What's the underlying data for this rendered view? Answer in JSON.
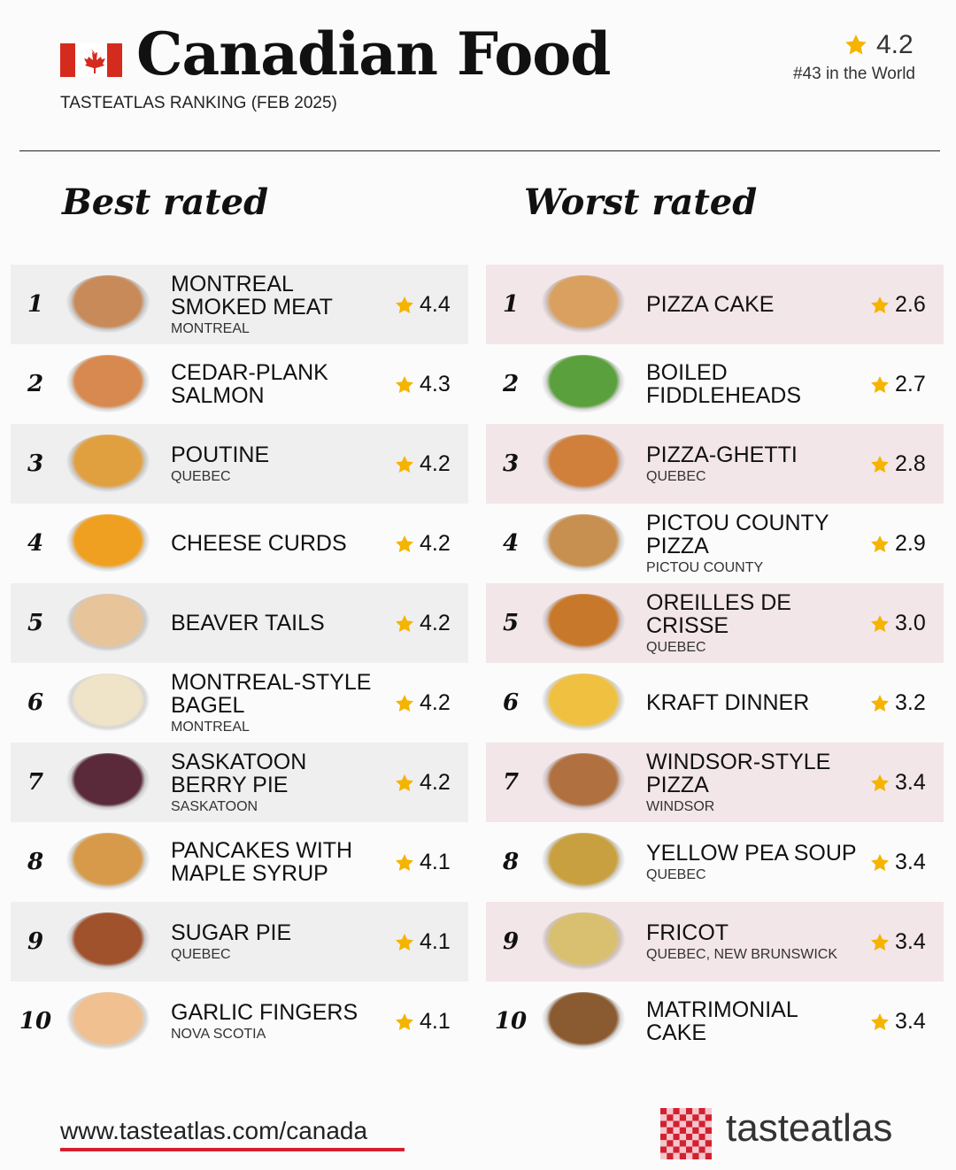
{
  "header": {
    "title": "Canadian Food",
    "subtitle": "TASTEATLAS RANKING (FEB 2025)",
    "rating": "4.2",
    "world_rank": "#43 in the World"
  },
  "best": {
    "heading": "Best rated",
    "items": [
      {
        "rank": 1,
        "name": "MONTREAL SMOKED MEAT",
        "region": "MONTREAL",
        "rating": "4.4"
      },
      {
        "rank": 2,
        "name": "CEDAR-PLANK SALMON",
        "region": null,
        "rating": "4.3"
      },
      {
        "rank": 3,
        "name": "POUTINE",
        "region": "QUEBEC",
        "rating": "4.2"
      },
      {
        "rank": 4,
        "name": "CHEESE CURDS",
        "region": null,
        "rating": "4.2"
      },
      {
        "rank": 5,
        "name": "BEAVER TAILS",
        "region": null,
        "rating": "4.2"
      },
      {
        "rank": 6,
        "name": "MONTREAL-STYLE BAGEL",
        "region": "MONTREAL",
        "rating": "4.2"
      },
      {
        "rank": 7,
        "name": "SASKATOON BERRY PIE",
        "region": "SASKATOON",
        "rating": "4.2"
      },
      {
        "rank": 8,
        "name": "PANCAKES WITH MAPLE SYRUP",
        "region": null,
        "rating": "4.1"
      },
      {
        "rank": 9,
        "name": "SUGAR PIE",
        "region": "QUEBEC",
        "rating": "4.1"
      },
      {
        "rank": 10,
        "name": "GARLIC FINGERS",
        "region": "NOVA SCOTIA",
        "rating": "4.1"
      }
    ]
  },
  "worst": {
    "heading": "Worst rated",
    "items": [
      {
        "rank": 1,
        "name": "PIZZA CAKE",
        "region": null,
        "rating": "2.6"
      },
      {
        "rank": 2,
        "name": "BOILED FIDDLEHEADS",
        "region": null,
        "rating": "2.7"
      },
      {
        "rank": 3,
        "name": "PIZZA-GHETTI",
        "region": "QUEBEC",
        "rating": "2.8"
      },
      {
        "rank": 4,
        "name": "PICTOU COUNTY PIZZA",
        "region": "PICTOU COUNTY",
        "rating": "2.9"
      },
      {
        "rank": 5,
        "name": "OREILLES DE CRISSE",
        "region": "QUEBEC",
        "rating": "3.0"
      },
      {
        "rank": 6,
        "name": "KRAFT DINNER",
        "region": null,
        "rating": "3.2"
      },
      {
        "rank": 7,
        "name": "WINDSOR-STYLE PIZZA",
        "region": "WINDSOR",
        "rating": "3.4"
      },
      {
        "rank": 8,
        "name": "YELLOW PEA SOUP",
        "region": "QUEBEC",
        "rating": "3.4"
      },
      {
        "rank": 9,
        "name": "FRICOT",
        "region": "QUEBEC, NEW BRUNSWICK",
        "rating": "3.4"
      },
      {
        "rank": 10,
        "name": "MATRIMONIAL CAKE",
        "region": null,
        "rating": "3.4"
      }
    ]
  },
  "footer": {
    "url": "www.tasteatlas.com/canada",
    "brand": "tasteatlas"
  }
}
